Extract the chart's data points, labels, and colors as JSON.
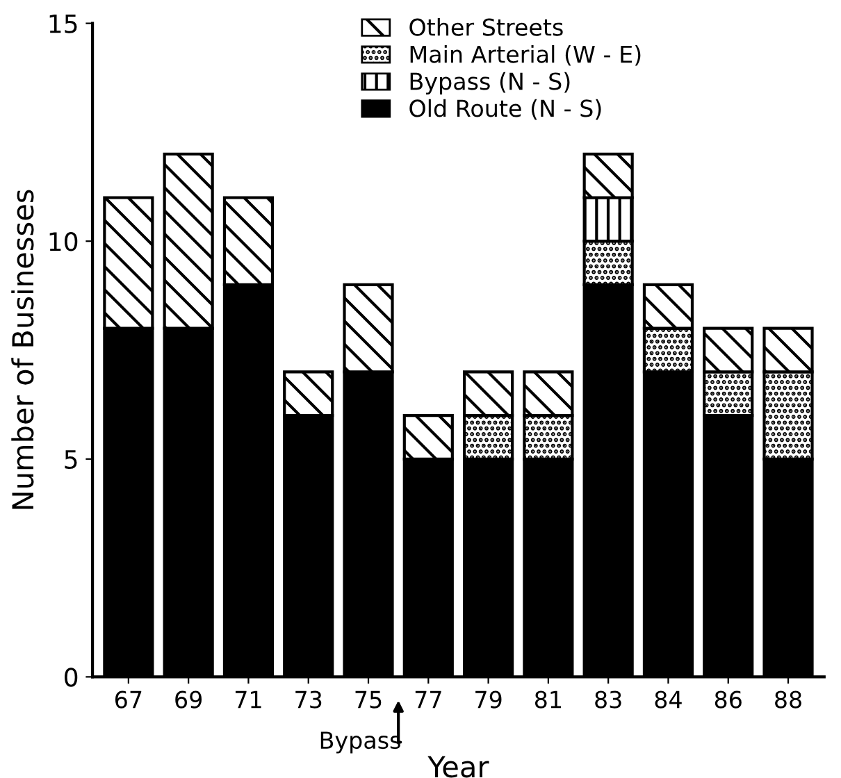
{
  "chart_data": {
    "type": "bar",
    "stacked": true,
    "xlabel": "Year",
    "ylabel": "Number of Businesses",
    "categories": [
      "67",
      "69",
      "71",
      "73",
      "75",
      "77",
      "79",
      "81",
      "83",
      "84",
      "86",
      "88"
    ],
    "series": [
      {
        "name": "Old Route (N - S)",
        "color": "#000000",
        "values": [
          8,
          8,
          9,
          6,
          7,
          5,
          5,
          5,
          9,
          7,
          6,
          5
        ]
      },
      {
        "name": "Main Arterial (W - E)",
        "color": "#000000",
        "values": [
          0,
          0,
          0,
          0,
          0,
          0,
          1,
          1,
          1,
          1,
          1,
          2
        ]
      },
      {
        "name": "Bypass (N - S)",
        "color": "#000000",
        "values": [
          0,
          0,
          0,
          0,
          0,
          0,
          0,
          0,
          1,
          0,
          0,
          0
        ]
      },
      {
        "name": "Other Streets",
        "color": "#000000",
        "values": [
          3,
          4,
          2,
          1,
          2,
          1,
          1,
          1,
          1,
          1,
          1,
          1
        ]
      }
    ],
    "ylim": [
      0,
      15
    ],
    "yticks": [
      0,
      5,
      10,
      15
    ],
    "grid": false,
    "legend": "top right",
    "annotations": [
      "Bypass"
    ]
  }
}
